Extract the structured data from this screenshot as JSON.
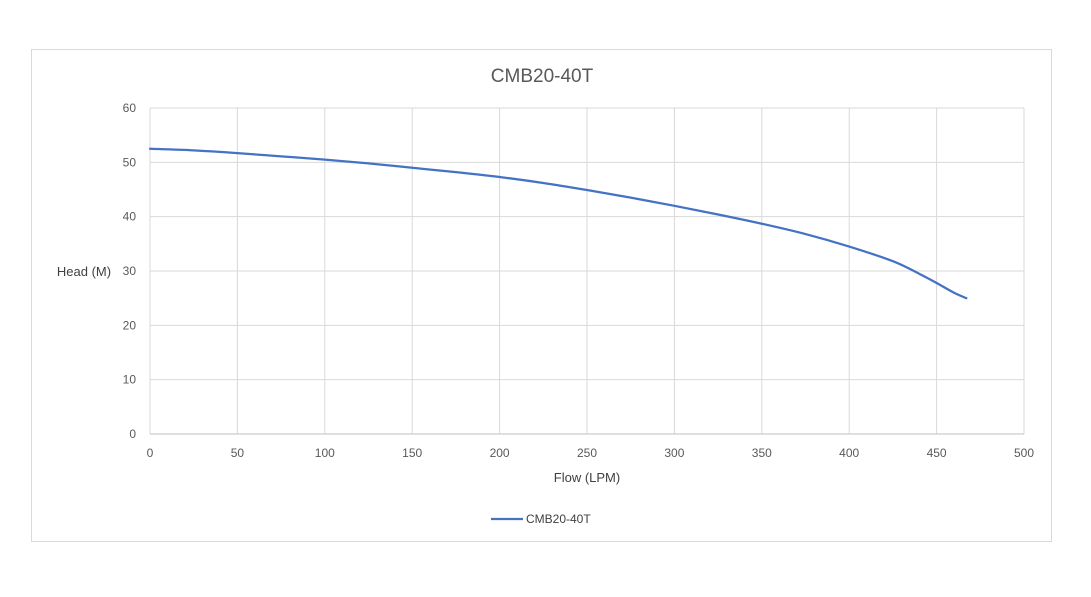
{
  "chart_data": {
    "type": "line",
    "title": "CMB20-40T",
    "xlabel": "Flow (LPM)",
    "ylabel": "Head (M)",
    "xlim": [
      0,
      500
    ],
    "ylim": [
      0,
      60
    ],
    "xticks": [
      0,
      50,
      100,
      150,
      200,
      250,
      300,
      350,
      400,
      450,
      500
    ],
    "yticks": [
      0,
      10,
      20,
      30,
      40,
      50,
      60
    ],
    "xtick_labels": [
      "0",
      "50",
      "100",
      "150",
      "200",
      "250",
      "300",
      "350",
      "400",
      "450",
      "500"
    ],
    "ytick_labels": [
      "0",
      "10",
      "20",
      "30",
      "40",
      "50",
      "60"
    ],
    "grid": true,
    "legend_position": "bottom",
    "series": [
      {
        "name": "CMB20-40T",
        "color": "#4472c4",
        "x": [
          0,
          25,
          50,
          75,
          100,
          125,
          150,
          175,
          200,
          225,
          250,
          275,
          300,
          325,
          350,
          375,
          400,
          425,
          440,
          450,
          460,
          467
        ],
        "y": [
          52.5,
          52.2,
          51.7,
          51.1,
          50.5,
          49.8,
          49.0,
          48.2,
          47.3,
          46.2,
          44.9,
          43.5,
          42.0,
          40.4,
          38.7,
          36.8,
          34.5,
          31.8,
          29.5,
          27.8,
          26.0,
          25.0
        ]
      }
    ]
  }
}
